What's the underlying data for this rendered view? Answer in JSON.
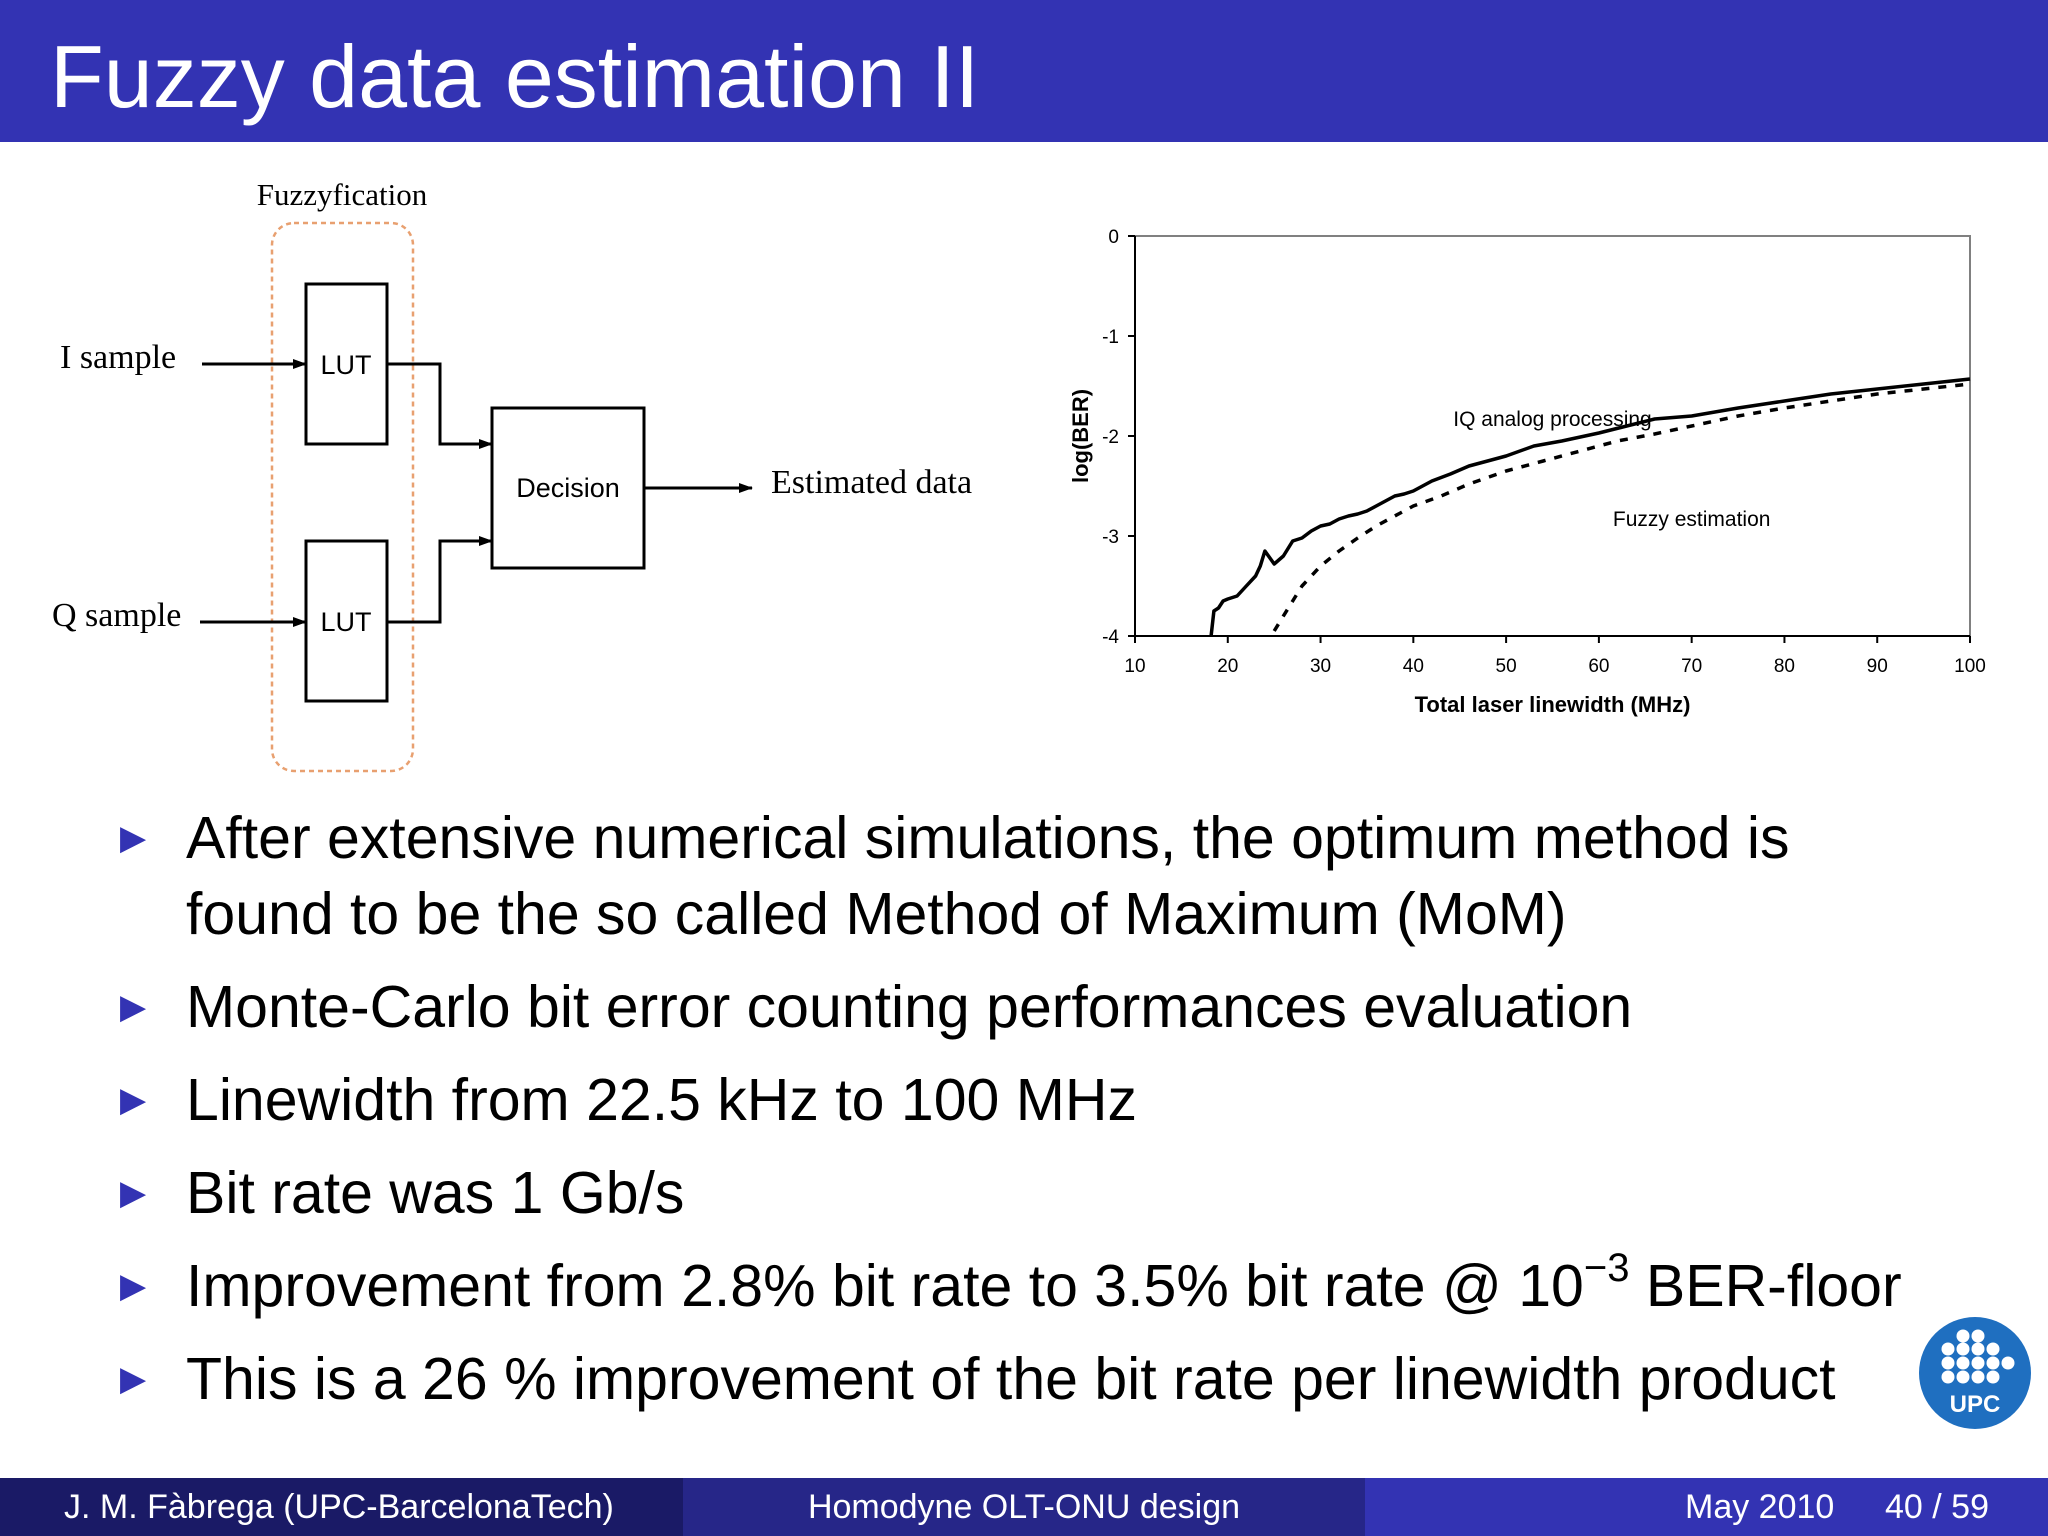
{
  "slide": {
    "title": "Fuzzy data estimation II"
  },
  "diagram": {
    "group_label": "Fuzzyfication",
    "input_i": "I sample",
    "input_q": "Q sample",
    "lut_top": "LUT",
    "lut_bottom": "LUT",
    "decision": "Decision",
    "output": "Estimated data",
    "colors": {
      "dashed_border": "#e8a070",
      "lines": "#000000"
    }
  },
  "chart_data": {
    "type": "line",
    "title": "",
    "xlabel": "Total laser linewidth (MHz)",
    "ylabel": "log(BER)",
    "xlim": [
      10,
      100
    ],
    "ylim": [
      -4,
      0
    ],
    "xticks": [
      10,
      20,
      30,
      40,
      50,
      60,
      70,
      80,
      90,
      100
    ],
    "yticks": [
      0,
      -1,
      -2,
      -3,
      -4
    ],
    "series": [
      {
        "name": "IQ analog processing",
        "style": "solid",
        "x": [
          18.2,
          18.5,
          19,
          19.5,
          20,
          21,
          22,
          23,
          23.5,
          24,
          25,
          26,
          27,
          28,
          29,
          30,
          31,
          32,
          33,
          34,
          35,
          36,
          37,
          38,
          39,
          40,
          42,
          44,
          46,
          48,
          50,
          53,
          56,
          60,
          63,
          66,
          70,
          75,
          80,
          85,
          90,
          95,
          100
        ],
        "y": [
          -4.0,
          -3.75,
          -3.72,
          -3.65,
          -3.63,
          -3.6,
          -3.5,
          -3.4,
          -3.3,
          -3.15,
          -3.28,
          -3.2,
          -3.05,
          -3.02,
          -2.95,
          -2.9,
          -2.88,
          -2.83,
          -2.8,
          -2.78,
          -2.75,
          -2.7,
          -2.65,
          -2.6,
          -2.58,
          -2.55,
          -2.45,
          -2.38,
          -2.3,
          -2.25,
          -2.2,
          -2.1,
          -2.05,
          -1.97,
          -1.9,
          -1.83,
          -1.8,
          -1.72,
          -1.65,
          -1.58,
          -1.53,
          -1.48,
          -1.43
        ]
      },
      {
        "name": "Fuzzy estimation",
        "style": "dashed",
        "x": [
          25,
          26,
          27,
          28,
          29,
          30,
          32,
          34,
          36,
          38,
          40,
          43,
          46,
          50,
          54,
          58,
          62,
          66,
          70,
          75,
          80,
          85,
          90,
          95,
          100
        ],
        "y": [
          -3.95,
          -3.8,
          -3.65,
          -3.5,
          -3.4,
          -3.3,
          -3.15,
          -3.02,
          -2.9,
          -2.8,
          -2.7,
          -2.6,
          -2.48,
          -2.35,
          -2.25,
          -2.15,
          -2.05,
          -1.98,
          -1.9,
          -1.8,
          -1.72,
          -1.65,
          -1.58,
          -1.53,
          -1.48
        ]
      }
    ],
    "annotations": [
      {
        "text": "IQ analog processing",
        "x": 55,
        "y": -1.9
      },
      {
        "text": "Fuzzy estimation",
        "x": 70,
        "y": -2.9
      }
    ],
    "grid": false,
    "legend": "none"
  },
  "bullets": [
    {
      "lines": [
        "After extensive numerical simulations, the optimum method is",
        "found to be the so called Method of Maximum (MoM)"
      ]
    },
    {
      "lines": [
        "Monte-Carlo bit error counting performances evaluation"
      ]
    },
    {
      "lines": [
        "Linewidth from 22.5 kHz to 100 MHz"
      ]
    },
    {
      "lines": [
        "Bit rate was 1 Gb/s"
      ]
    },
    {
      "pre": "Improvement from 2.8% bit rate to 3.5% bit rate @ 10",
      "exp": "−3",
      "post": " BER-floor"
    },
    {
      "lines": [
        "This is a 26 % improvement of the bit rate per linewidth product"
      ]
    }
  ],
  "logo": {
    "text": "UPC",
    "color": "#1f6fc0"
  },
  "footer": {
    "author": "J. M. Fàbrega  (UPC-BarcelonaTech)",
    "talk": "Homodyne OLT-ONU design",
    "date": "May 2010",
    "page": "40 / 59"
  },
  "colors": {
    "title_bar": "#3333b3",
    "footer_left": "#1a1a66",
    "footer_mid": "#262688",
    "footer_right": "#3333b3",
    "bullet_arrow": "#3333b3"
  }
}
